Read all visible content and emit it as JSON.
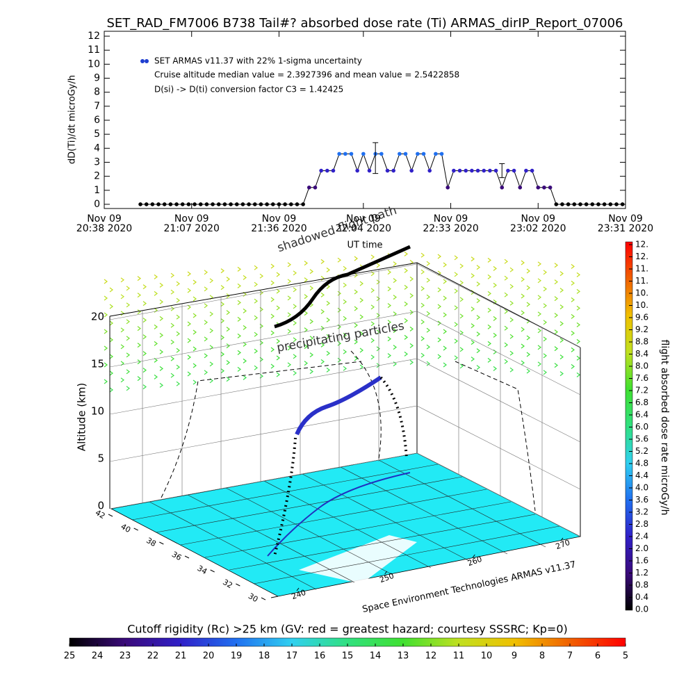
{
  "chart_data": [
    {
      "type": "line",
      "title": "SET_RAD_FM7006  B738 Tail#? absorbed dose rate (Ti) ARMAS_dirIP_Report_07006",
      "xlabel": "UT time",
      "ylabel": "dD(Ti)/dt microGy/h",
      "annotations": [
        "Cruise altitude median value = 2.3927396 and mean value = 2.5422858",
        "D(si) -> D(ti) conversion factor C3 = 1.42425"
      ],
      "x": [
        "2020-11-09T20:50",
        "2020-11-09T20:52",
        "2020-11-09T20:54",
        "2020-11-09T20:56",
        "2020-11-09T20:58",
        "2020-11-09T21:00",
        "2020-11-09T21:02",
        "2020-11-09T21:04",
        "2020-11-09T21:06",
        "2020-11-09T21:08",
        "2020-11-09T21:10",
        "2020-11-09T21:12",
        "2020-11-09T21:14",
        "2020-11-09T21:16",
        "2020-11-09T21:18",
        "2020-11-09T21:20",
        "2020-11-09T21:22",
        "2020-11-09T21:24",
        "2020-11-09T21:26",
        "2020-11-09T21:28",
        "2020-11-09T21:30",
        "2020-11-09T21:32",
        "2020-11-09T21:34",
        "2020-11-09T21:36",
        "2020-11-09T21:38",
        "2020-11-09T21:40",
        "2020-11-09T21:42",
        "2020-11-09T21:44",
        "2020-11-09T21:46",
        "2020-11-09T21:48",
        "2020-11-09T21:50",
        "2020-11-09T21:52",
        "2020-11-09T21:54",
        "2020-11-09T21:56",
        "2020-11-09T21:58",
        "2020-11-09T22:00",
        "2020-11-09T22:02",
        "2020-11-09T22:04",
        "2020-11-09T22:06",
        "2020-11-09T22:08",
        "2020-11-09T22:10",
        "2020-11-09T22:12",
        "2020-11-09T22:14",
        "2020-11-09T22:16",
        "2020-11-09T22:18",
        "2020-11-09T22:20",
        "2020-11-09T22:22",
        "2020-11-09T22:24",
        "2020-11-09T22:26",
        "2020-11-09T22:28",
        "2020-11-09T22:30",
        "2020-11-09T22:32",
        "2020-11-09T22:34",
        "2020-11-09T22:36",
        "2020-11-09T22:38",
        "2020-11-09T22:40",
        "2020-11-09T22:42",
        "2020-11-09T22:44",
        "2020-11-09T22:46",
        "2020-11-09T22:48",
        "2020-11-09T22:50",
        "2020-11-09T22:52",
        "2020-11-09T22:54",
        "2020-11-09T22:56",
        "2020-11-09T22:58",
        "2020-11-09T23:00",
        "2020-11-09T23:02",
        "2020-11-09T23:04",
        "2020-11-09T23:06",
        "2020-11-09T23:08",
        "2020-11-09T23:10",
        "2020-11-09T23:12",
        "2020-11-09T23:14",
        "2020-11-09T23:16",
        "2020-11-09T23:18",
        "2020-11-09T23:20",
        "2020-11-09T23:22",
        "2020-11-09T23:24",
        "2020-11-09T23:26",
        "2020-11-09T23:28",
        "2020-11-09T23:30"
      ],
      "series": [
        {
          "name": "SET ARMAS v11.37 with 22% 1-sigma uncertainty",
          "color": "#1f3fd0",
          "values": [
            0,
            0,
            0,
            0,
            0,
            0,
            0,
            0,
            0,
            0,
            0,
            0,
            0,
            0,
            0,
            0,
            0,
            0,
            0,
            0,
            0,
            0,
            0,
            0,
            0,
            0,
            0,
            0,
            1.2,
            1.2,
            2.4,
            2.4,
            2.4,
            3.6,
            3.6,
            3.6,
            2.4,
            3.6,
            2.4,
            3.6,
            3.6,
            2.4,
            2.4,
            3.6,
            3.6,
            2.4,
            3.6,
            3.6,
            2.4,
            3.6,
            3.6,
            1.2,
            2.4,
            2.4,
            2.4,
            2.4,
            2.4,
            2.4,
            2.4,
            2.4,
            1.2,
            2.4,
            2.4,
            1.2,
            2.4,
            2.4,
            1.2,
            1.2,
            1.2,
            0,
            0,
            0,
            0,
            0,
            0,
            0,
            0,
            0,
            0,
            0,
            0
          ]
        }
      ],
      "error_bars": [
        {
          "x": "2020-11-09T22:08",
          "value": 3.3,
          "error": 1.1
        },
        {
          "x": "2020-11-09T22:50",
          "value": 2.4,
          "error": 0.5
        }
      ],
      "xlim": [
        "2020-11-09T20:38",
        "2020-11-09T23:31"
      ],
      "xticks": [
        {
          "value": "2020-11-09T20:38",
          "label": "Nov 09\n20:38 2020"
        },
        {
          "value": "2020-11-09T21:07",
          "label": "Nov 09\n21:07 2020"
        },
        {
          "value": "2020-11-09T21:36",
          "label": "Nov 09\n21:36 2020"
        },
        {
          "value": "2020-11-09T22:04",
          "label": "Nov 09\n22:04 2020"
        },
        {
          "value": "2020-11-09T22:33",
          "label": "Nov 09\n22:33 2020"
        },
        {
          "value": "2020-11-09T23:02",
          "label": "Nov 09\n23:02 2020"
        },
        {
          "value": "2020-11-09T23:31",
          "label": "Nov 09\n23:31 2020"
        }
      ],
      "ylim": [
        -0.3,
        12.35
      ],
      "yticks": [
        0,
        1,
        2,
        3,
        4,
        5,
        6,
        7,
        8,
        9,
        10,
        11,
        12
      ]
    },
    {
      "type": "surface3d",
      "zlabel": "Altitude (km)",
      "zticks": [
        0,
        5,
        10,
        15,
        20
      ],
      "lat_ticks": [
        42,
        40,
        38,
        36,
        34,
        32,
        30
      ],
      "lon_ticks": [
        240,
        250,
        260,
        270
      ],
      "annotations": [
        "shadowed flight path",
        "precipitating particles"
      ],
      "credit": "Space Environment Technologies ARMAS v11.37"
    },
    {
      "type": "colorbar",
      "orientation": "vertical",
      "label": "flight absorbed dose rate microGy/h",
      "ylim": [
        0,
        12
      ],
      "yticks": [
        {
          "value": 0,
          "label": "0.0"
        },
        0.4,
        0.8,
        1.2,
        1.6,
        {
          "value": 2,
          "label": "2.0"
        },
        2.4,
        2.8,
        3.2,
        3.6,
        {
          "value": 4,
          "label": "4.0"
        },
        4.4,
        4.8,
        5.2,
        5.6,
        {
          "value": 6,
          "label": "6.0"
        },
        6.4,
        6.8,
        7.2,
        7.6,
        {
          "value": 8,
          "label": "8.0"
        },
        8.4,
        8.8,
        9.2,
        9.6,
        {
          "value": 10,
          "label": "10."
        },
        {
          "value": 10.4,
          "label": "10."
        },
        {
          "value": 10.8,
          "label": "11."
        },
        {
          "value": 11.2,
          "label": "11."
        },
        {
          "value": 11.6,
          "label": "12."
        },
        {
          "value": 12,
          "label": "12."
        }
      ]
    },
    {
      "type": "colorbar",
      "orientation": "horizontal",
      "label": "Cutoff rigidity (Rc) >25 km (GV: red = greatest hazard; courtesy SSSRC; Kp=0)",
      "xlim": [
        25,
        5
      ],
      "xticks": [
        25,
        24,
        23,
        22,
        21,
        20,
        19,
        18,
        17,
        16,
        15,
        14,
        13,
        12,
        11,
        10,
        9,
        8,
        7,
        6,
        5
      ]
    }
  ]
}
